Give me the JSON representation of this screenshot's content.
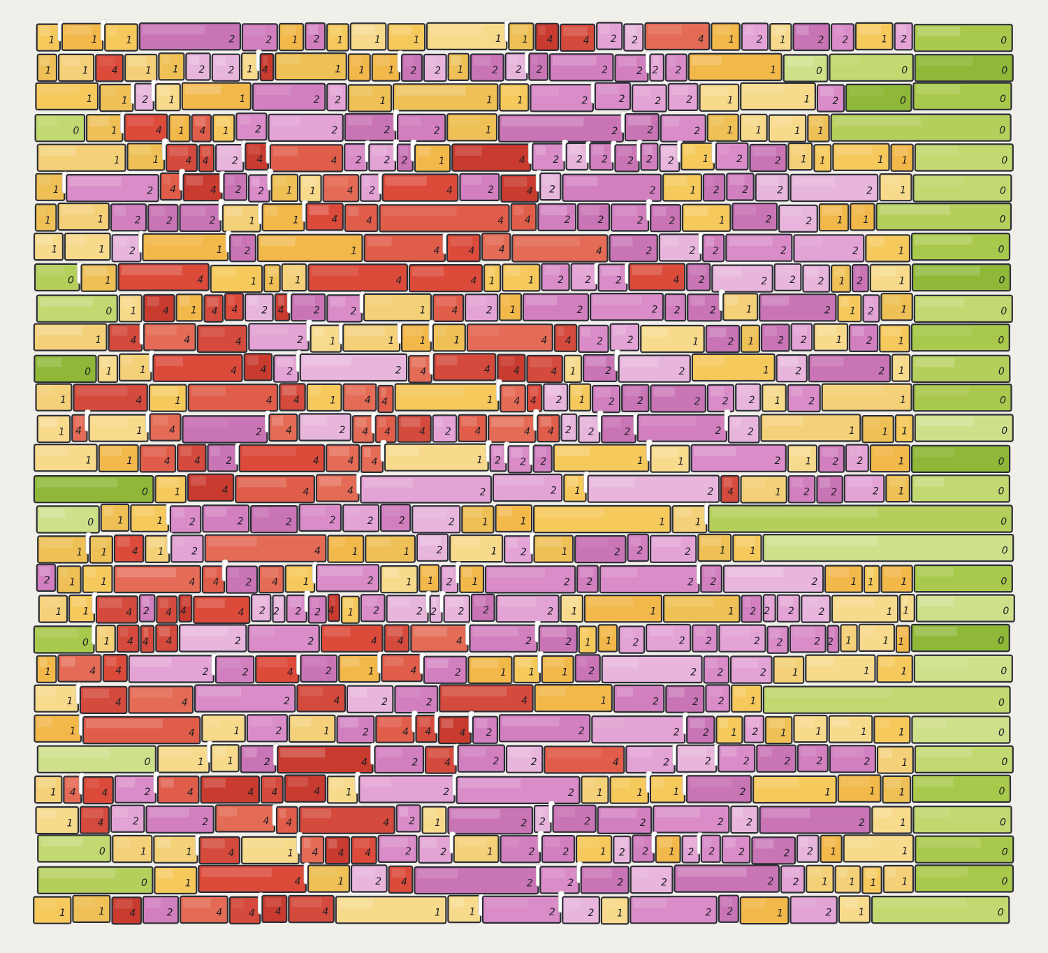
{
  "artwork": {
    "background_color": "#f1efea",
    "outline_color": "#2c2e36",
    "tab_color": "#ffffff",
    "palette": {
      "0": [
        "#a9c94c",
        "#c2d870",
        "#8fb838",
        "#cfe08a",
        "#b5cf5c"
      ],
      "1": [
        "#f6c95c",
        "#f4d078",
        "#f2b84a",
        "#f7da8c",
        "#eec055"
      ],
      "2": [
        "#d98cc7",
        "#e3a3d4",
        "#c974b5",
        "#e8b6dc",
        "#d27fbf"
      ],
      "4": [
        "#dc4a3a",
        "#e05d4a",
        "#c93a2f",
        "#e46b55",
        "#d44a3c"
      ]
    },
    "rows": [
      "1112212111114422412122120",
      "11411221411122122222221000",
      "1121122111222211200",
      "0141412222122211110",
      "11442442221422222212211110",
      "1244221142424221222210",
      "112221144442222122110",
      "11212144442222210",
      "0141114411222422221210",
      "014144242214212222121210",
      "1444211114422121221210",
      "0114422444412212210",
      "1414414414421222221210",
      "14142424442444222221110",
      "11442444122211212210",
      "0144422124122210",
      "011222222211110",
      "114124112121222110",
      "2114424121121222221110",
      "11424442222412222221112222110",
      "0144422444221122222221110",
      "144224214211122221110",
      "14424224122210",
      "14121244422221211110",
      "011242422422222210",
      "1442444412211121110",
      "142244421222222210",
      "0114144422122122122222110",
      "01412422222211110",
      "1142444411221221210"
    ]
  }
}
